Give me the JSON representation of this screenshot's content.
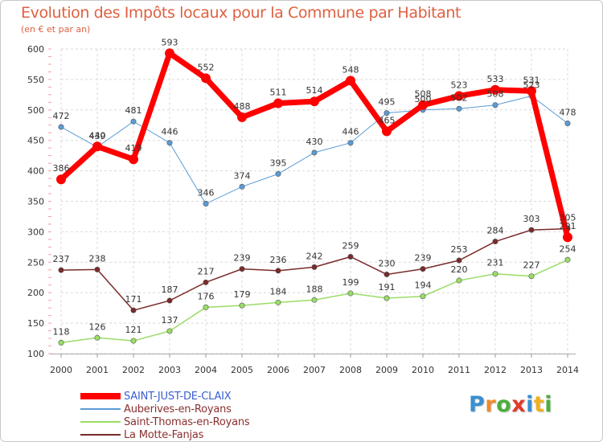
{
  "title": "Evolution des Impôts locaux pour la Commune par Habitant",
  "subtitle": "(en € et par an)",
  "brand": {
    "text": "Proxiti",
    "letters": [
      {
        "char": "P",
        "color": "#3a8fd0"
      },
      {
        "char": "r",
        "color": "#f08a2a"
      },
      {
        "char": "o",
        "color": "#4cae3c"
      },
      {
        "char": "x",
        "color": "#e23a2a"
      },
      {
        "char": "i",
        "color": "#3a8fd0"
      },
      {
        "char": "t",
        "color": "#f0b020"
      },
      {
        "char": "i",
        "color": "#4cae3c"
      }
    ]
  },
  "chart_data": {
    "type": "line",
    "title": "Evolution des Impôts locaux pour la Commune par Habitant",
    "subtitle": "(en € et par an)",
    "xlabel": "",
    "ylabel": "",
    "ylim": [
      100,
      600
    ],
    "yticks": [
      100,
      150,
      200,
      250,
      300,
      350,
      400,
      450,
      500,
      550,
      600
    ],
    "grid": true,
    "legend_position": "bottom-left",
    "x": [
      "2000",
      "2001",
      "2002",
      "2003",
      "2004",
      "2005",
      "2006",
      "2007",
      "2008",
      "2009",
      "2010",
      "2011",
      "2012",
      "2013",
      "2014"
    ],
    "series": [
      {
        "name": "Auberives-en-Royans",
        "color": "#5b9bd5",
        "marker": "#3a7fc0",
        "weight": 1,
        "values": [
          472,
          439,
          481,
          446,
          346,
          374,
          395,
          430,
          446,
          495,
          500,
          502,
          508,
          523,
          478
        ],
        "labels": [
          "472",
          "439",
          "481",
          "446",
          "346",
          "374",
          "395",
          "430",
          "446",
          "495",
          "500",
          "502",
          "508",
          "523",
          "478"
        ]
      },
      {
        "name": "Saint-Thomas-en-Royans",
        "color": "#99dd66",
        "marker": "#6ac02a",
        "weight": 1.5,
        "values": [
          118,
          126,
          121,
          137,
          176,
          179,
          184,
          188,
          199,
          191,
          194,
          220,
          231,
          227,
          254
        ],
        "labels": [
          "118",
          "126",
          "121",
          "137",
          "176",
          "179",
          "184",
          "188",
          "199",
          "191",
          "194",
          "220",
          "231",
          "227",
          "254"
        ]
      },
      {
        "name": "La Motte-Fanjas",
        "color": "#7a2a2a",
        "marker": "#6a1a1a",
        "weight": 1.5,
        "values": [
          237,
          238,
          171,
          187,
          217,
          239,
          236,
          242,
          259,
          230,
          239,
          253,
          284,
          303,
          305
        ],
        "labels": [
          "237",
          "238",
          "171",
          "187",
          "217",
          "239",
          "236",
          "242",
          "259",
          "230",
          "239",
          "253",
          "284",
          "303",
          "305"
        ]
      },
      {
        "name": "SAINT-JUST-DE-CLAIX",
        "color": "#ff0000",
        "marker": "#ff0000",
        "weight": 7,
        "values": [
          386,
          440,
          419,
          593,
          552,
          488,
          511,
          514,
          548,
          465,
          508,
          523,
          533,
          531,
          291
        ],
        "labels": [
          "386",
          "440",
          "419",
          "593",
          "552",
          "488",
          "511",
          "514",
          "548",
          "465",
          "508",
          "523",
          "533",
          "531",
          "291"
        ]
      }
    ],
    "legend": [
      {
        "name": "SAINT-JUST-DE-CLAIX",
        "color": "#ff0000",
        "weight": 8,
        "text_color": "#3a5fd0"
      },
      {
        "name": "Auberives-en-Royans",
        "color": "#5b9bd5",
        "weight": 2,
        "text_color": "#8a2f2f"
      },
      {
        "name": "Saint-Thomas-en-Royans",
        "color": "#99dd66",
        "weight": 2,
        "text_color": "#8a2f2f"
      },
      {
        "name": "La Motte-Fanjas",
        "color": "#7a2a2a",
        "weight": 2,
        "text_color": "#8a2f2f"
      }
    ]
  }
}
